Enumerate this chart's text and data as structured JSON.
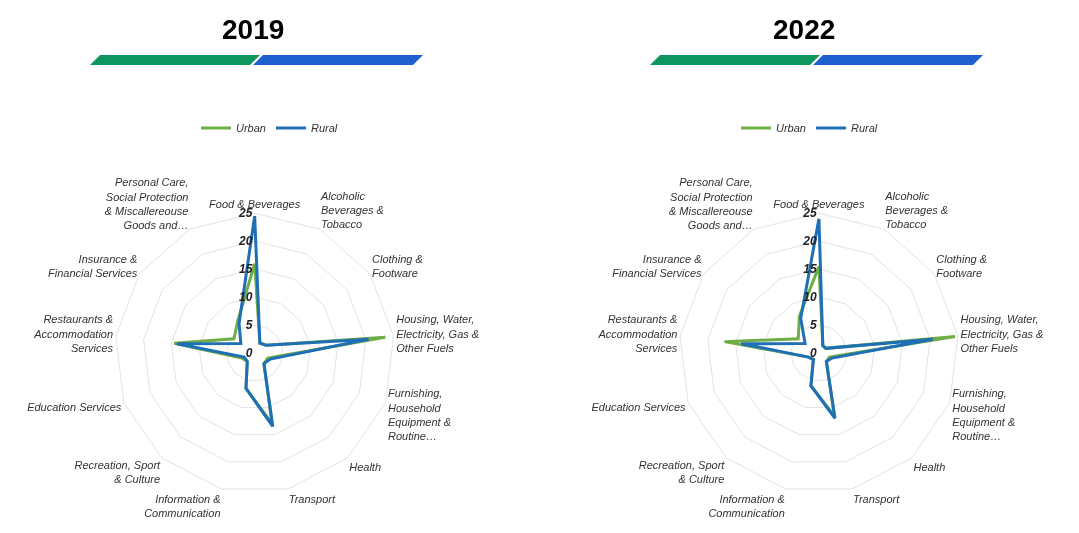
{
  "chart_data": [
    {
      "type": "radar",
      "title": "2019",
      "categories": [
        "Food & Beverages",
        "Alcoholic Beverages & Tobacco",
        "Clothing & Footware",
        "Housing, Water, Electricity, Gas & Other Fuels",
        "Furnishing, Household Equipment & Routine…",
        "Health",
        "Transport",
        "Information & Communication",
        "Recreation, Sport & Culture",
        "Education Services",
        "Restaurants & Accommodation Services",
        "Insurance & Financial Services",
        "Personal Care, Social Protection & Miscallereouse Goods and…"
      ],
      "series": [
        {
          "name": "Urban",
          "color": "#70ad47",
          "values": [
            16,
            2,
            2.5,
            23.5,
            2.5,
            2.5,
            13,
            6.5,
            2,
            2.5,
            14.5,
            4.5,
            6.5
          ]
        },
        {
          "name": "Rural",
          "color": "#1f6fb5",
          "values": [
            24.5,
            2,
            2.5,
            20.5,
            3,
            2.5,
            13.5,
            6.5,
            2,
            2,
            14,
            3,
            6
          ]
        }
      ],
      "ylim": [
        0,
        25
      ],
      "yticks": [
        0,
        5,
        10,
        15,
        20,
        25
      ],
      "grid": "y",
      "legend": "top",
      "marker": "none"
    },
    {
      "type": "radar",
      "title": "2022",
      "categories": [
        "Food & Beverages",
        "Alcoholic Beverages & Tobacco",
        "Clothing & Footware",
        "Housing, Water, Electricity, Gas & Other Fuels",
        "Furnishing, Household Equipment & Routine…",
        "Health",
        "Transport",
        "Information & Communication",
        "Recreation, Sport & Culture",
        "Education Services",
        "Restaurants & Accommodation Services",
        "Insurance & Financial Services",
        "Personal Care, Social Protection & Miscallereouse Goods and…"
      ],
      "series": [
        {
          "name": "Urban",
          "color": "#70ad47",
          "values": [
            15.5,
            1.5,
            1.5,
            24.5,
            2,
            2,
            11.5,
            6,
            1.5,
            2,
            17,
            4.5,
            7.5
          ]
        },
        {
          "name": "Rural",
          "color": "#1f6fb5",
          "values": [
            24,
            1.5,
            1.5,
            20.5,
            2.5,
            2,
            12,
            6,
            1.5,
            2,
            14,
            3,
            7
          ]
        }
      ],
      "ylim": [
        0,
        25
      ],
      "yticks": [
        0,
        5,
        10,
        15,
        20,
        25
      ],
      "grid": "y",
      "legend": "top",
      "marker": "none"
    }
  ]
}
